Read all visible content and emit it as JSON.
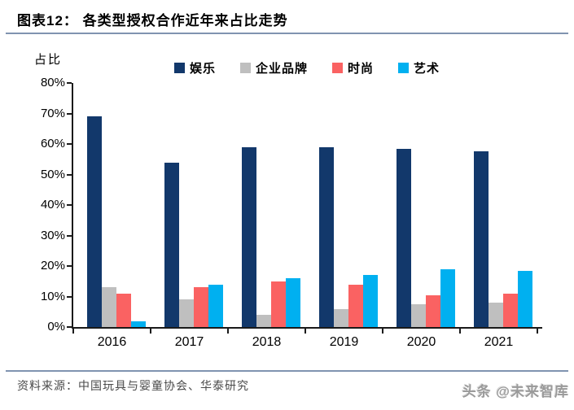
{
  "header": {
    "title": "图表12：  各类型授权合作近年来占比走势",
    "rule_color": "#8094B0"
  },
  "chart_data": {
    "type": "bar",
    "title": "各类型授权合作近年来占比走势",
    "ylabel": "占比",
    "ylim": [
      0,
      80
    ],
    "ytick_step": 10,
    "ytick_labels": [
      "80%",
      "70%",
      "60%",
      "50%",
      "40%",
      "30%",
      "20%",
      "10%",
      "0%"
    ],
    "grid": false,
    "legend_position": "top",
    "axis_color": "#1a1a1a",
    "categories": [
      "2016",
      "2017",
      "2018",
      "2019",
      "2020",
      "2021"
    ],
    "series": [
      {
        "name": "娱乐",
        "color": "#12386B",
        "values": [
          69,
          54,
          59,
          59,
          58.5,
          57.5
        ]
      },
      {
        "name": "企业品牌",
        "color": "#BFBFBF",
        "values": [
          13,
          9,
          4,
          6,
          7.5,
          8
        ]
      },
      {
        "name": "时尚",
        "color": "#FA6262",
        "values": [
          11,
          13,
          15,
          14,
          10.5,
          11
        ]
      },
      {
        "name": "艺术",
        "color": "#00B0F0",
        "values": [
          2,
          14,
          16,
          17,
          19,
          18.5
        ]
      }
    ]
  },
  "footer": {
    "source": "资料来源：中国玩具与婴童协会、华泰研究",
    "watermark": "头条 @未来智库"
  }
}
